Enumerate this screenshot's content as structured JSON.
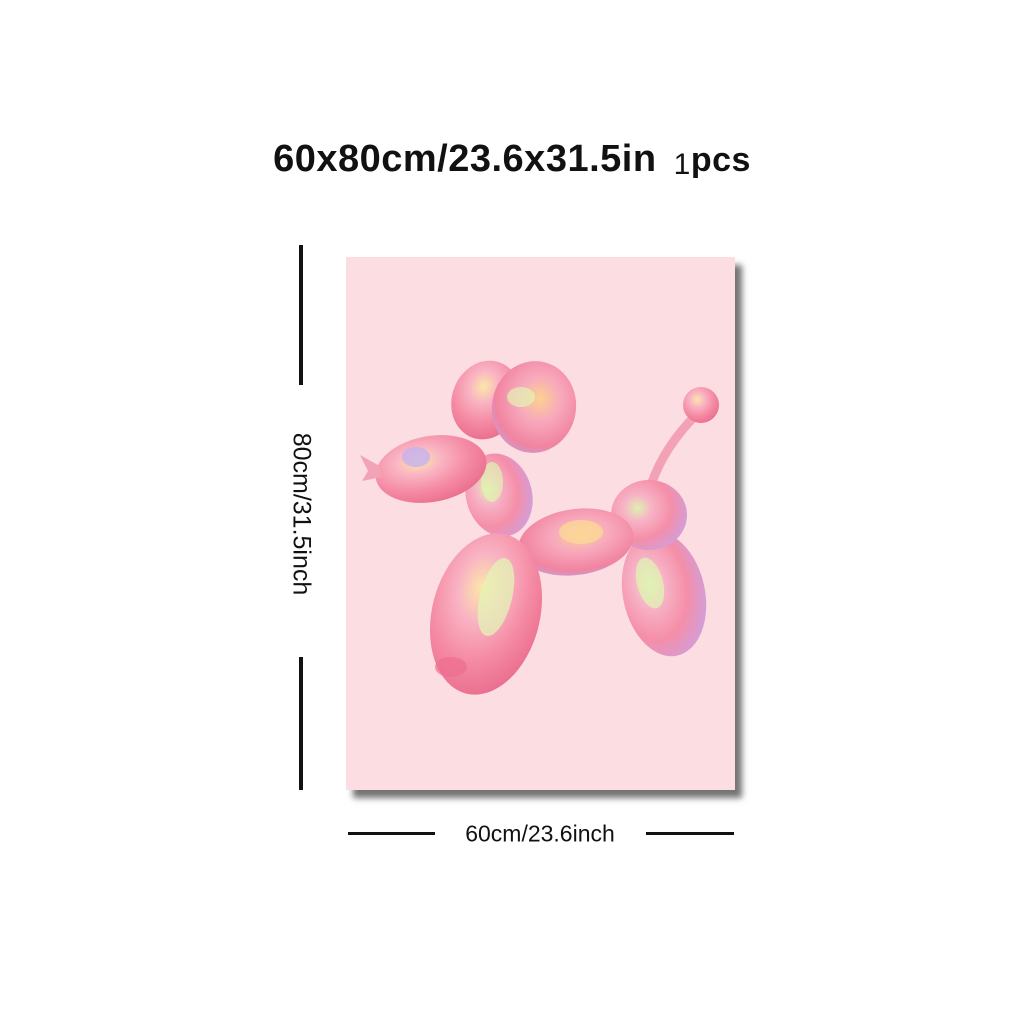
{
  "product": {
    "title_size": "60x80cm/23.6x31.5in",
    "quantity_number": "1",
    "quantity_unit": "pcs",
    "height_label": "80cm/31.5inch",
    "width_label": "60cm/23.6inch"
  },
  "artwork": {
    "subject": "balloon-dog",
    "background_color": "#fcdde2",
    "balloon_color": "#f7a8b8"
  }
}
